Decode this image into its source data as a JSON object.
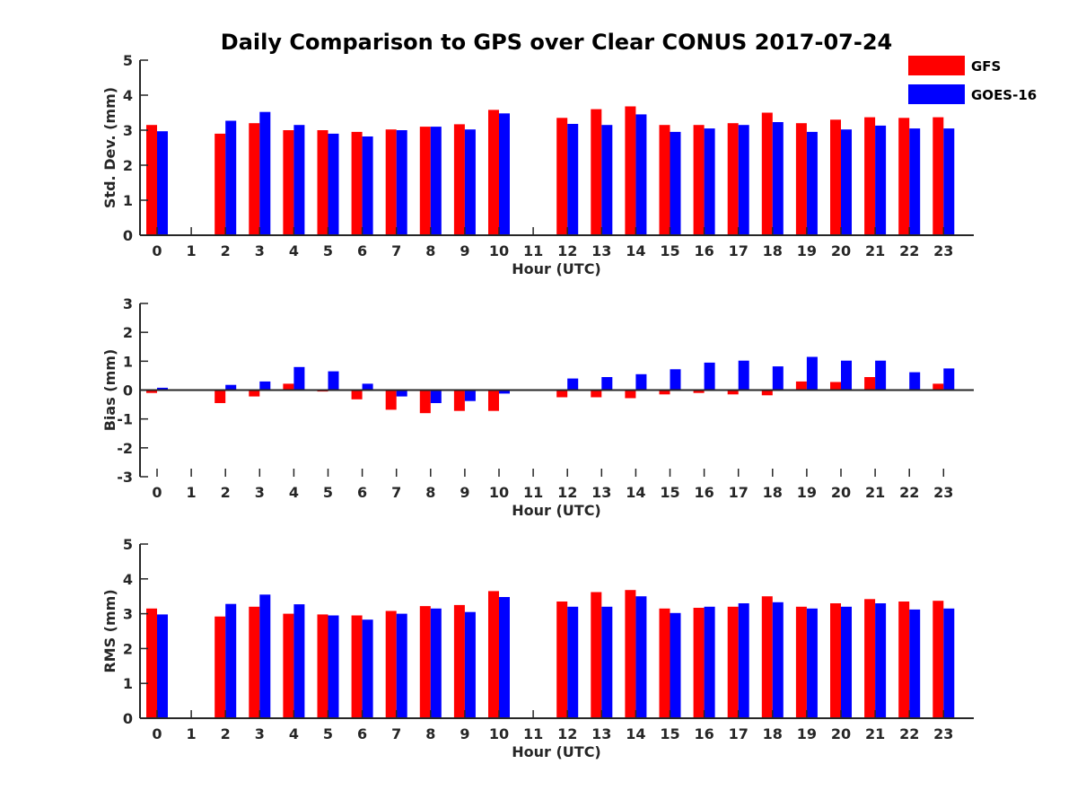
{
  "chart_data": {
    "title": "Daily Comparison to GPS over Clear CONUS 2017-07-24",
    "legend": {
      "placement": "top-right",
      "entries": [
        {
          "name": "GFS",
          "color": "#ff0000"
        },
        {
          "name": "GOES-16",
          "color": "#0000ff"
        }
      ]
    },
    "charts": [
      {
        "type": "bar",
        "ylabel": "Std. Dev. (mm)",
        "xlabel": "Hour (UTC)",
        "ylim": [
          0,
          5
        ],
        "yticks": [
          "0",
          "1",
          "2",
          "3",
          "4",
          "5"
        ],
        "categories": [
          "0",
          "1",
          "2",
          "3",
          "4",
          "5",
          "6",
          "7",
          "8",
          "9",
          "10",
          "11",
          "12",
          "13",
          "14",
          "15",
          "16",
          "17",
          "18",
          "19",
          "20",
          "21",
          "22",
          "23"
        ],
        "series": [
          {
            "name": "GFS",
            "color": "#ff0000",
            "values": [
              3.15,
              null,
              2.9,
              3.2,
              3.0,
              3.0,
              2.95,
              3.02,
              3.1,
              3.17,
              3.58,
              null,
              3.35,
              3.6,
              3.68,
              3.15,
              3.15,
              3.2,
              3.5,
              3.2,
              3.3,
              3.37,
              3.35,
              3.37
            ]
          },
          {
            "name": "GOES-16",
            "color": "#0000ff",
            "values": [
              2.97,
              null,
              3.27,
              3.52,
              3.15,
              2.9,
              2.82,
              3.0,
              3.1,
              3.02,
              3.48,
              null,
              3.18,
              3.15,
              3.45,
              2.95,
              3.05,
              3.15,
              3.23,
              2.95,
              3.02,
              3.13,
              3.05,
              3.05
            ]
          }
        ]
      },
      {
        "type": "bar",
        "ylabel": "Bias (mm)",
        "xlabel": "Hour (UTC)",
        "ylim": [
          -3,
          3
        ],
        "yticks": [
          "-3",
          "-2",
          "-1",
          "0.0",
          "1",
          "2",
          "3"
        ],
        "categories": [
          "0",
          "1",
          "2",
          "3",
          "4",
          "5",
          "6",
          "7",
          "8",
          "9",
          "10",
          "11",
          "12",
          "13",
          "14",
          "15",
          "16",
          "17",
          "18",
          "19",
          "20",
          "21",
          "22",
          "23"
        ],
        "series": [
          {
            "name": "GFS",
            "color": "#ff0000",
            "values": [
              -0.1,
              null,
              -0.45,
              -0.22,
              0.22,
              -0.05,
              -0.32,
              -0.68,
              -0.8,
              -0.72,
              -0.72,
              null,
              -0.25,
              -0.25,
              -0.28,
              -0.15,
              -0.1,
              -0.15,
              -0.18,
              0.3,
              0.28,
              0.45,
              -0.03,
              0.22
            ]
          },
          {
            "name": "GOES-16",
            "color": "#0000ff",
            "values": [
              0.08,
              null,
              0.18,
              0.3,
              0.8,
              0.65,
              0.22,
              -0.22,
              -0.45,
              -0.38,
              -0.12,
              null,
              0.4,
              0.45,
              0.55,
              0.72,
              0.95,
              1.02,
              0.82,
              1.15,
              1.02,
              1.02,
              0.62,
              0.75
            ]
          }
        ]
      },
      {
        "type": "bar",
        "ylabel": "RMS (mm)",
        "xlabel": "Hour (UTC)",
        "ylim": [
          0,
          5
        ],
        "yticks": [
          "0",
          "1",
          "2",
          "3",
          "4",
          "5"
        ],
        "categories": [
          "0",
          "1",
          "2",
          "3",
          "4",
          "5",
          "6",
          "7",
          "8",
          "9",
          "10",
          "11",
          "12",
          "13",
          "14",
          "15",
          "16",
          "17",
          "18",
          "19",
          "20",
          "21",
          "22",
          "23"
        ],
        "series": [
          {
            "name": "GFS",
            "color": "#ff0000",
            "values": [
              3.15,
              null,
              2.92,
              3.2,
              3.0,
              2.98,
              2.95,
              3.08,
              3.22,
              3.25,
              3.65,
              null,
              3.35,
              3.62,
              3.68,
              3.15,
              3.17,
              3.2,
              3.5,
              3.2,
              3.3,
              3.42,
              3.35,
              3.37
            ]
          },
          {
            "name": "GOES-16",
            "color": "#0000ff",
            "values": [
              2.98,
              null,
              3.28,
              3.55,
              3.27,
              2.95,
              2.83,
              3.0,
              3.15,
              3.05,
              3.48,
              null,
              3.2,
              3.2,
              3.5,
              3.02,
              3.2,
              3.3,
              3.33,
              3.15,
              3.2,
              3.3,
              3.12,
              3.15
            ]
          }
        ]
      }
    ]
  }
}
